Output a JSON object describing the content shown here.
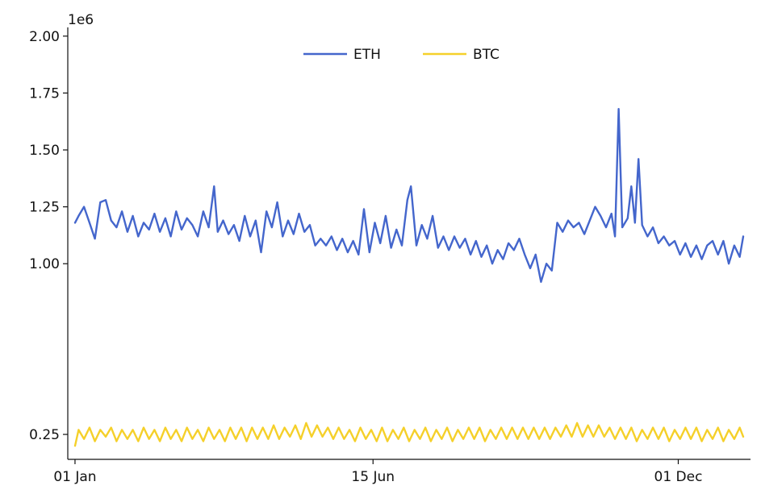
{
  "chart_data": {
    "type": "line",
    "title": "",
    "xlabel": "",
    "ylabel": "",
    "y_offset_label": "1e6",
    "y_ticks": [
      0.25,
      1.0,
      1.25,
      1.5,
      1.75,
      2.0
    ],
    "y_tick_labels": [
      "0.25",
      "1.00",
      "1.25",
      "1.50",
      "1.75",
      "2.00"
    ],
    "ylim": [
      0.19,
      2.01
    ],
    "x_ticks": [
      "2021-01-01",
      "2021-06-15",
      "2021-12-01"
    ],
    "x_tick_labels": [
      "01 Jan",
      "15 Jun",
      "01 Dec"
    ],
    "xlim": [
      "2020-12-28",
      "2022-01-10"
    ],
    "grid": false,
    "legend_position": "top-center",
    "series": [
      {
        "name": "ETH",
        "color": "#4466cc",
        "points": [
          [
            "2021-01-01",
            1.18
          ],
          [
            "2021-01-03",
            1.21
          ],
          [
            "2021-01-06",
            1.25
          ],
          [
            "2021-01-09",
            1.18
          ],
          [
            "2021-01-12",
            1.11
          ],
          [
            "2021-01-15",
            1.27
          ],
          [
            "2021-01-18",
            1.28
          ],
          [
            "2021-01-21",
            1.19
          ],
          [
            "2021-01-24",
            1.16
          ],
          [
            "2021-01-27",
            1.23
          ],
          [
            "2021-01-30",
            1.14
          ],
          [
            "2021-02-02",
            1.21
          ],
          [
            "2021-02-05",
            1.12
          ],
          [
            "2021-02-08",
            1.18
          ],
          [
            "2021-02-11",
            1.15
          ],
          [
            "2021-02-14",
            1.22
          ],
          [
            "2021-02-17",
            1.14
          ],
          [
            "2021-02-20",
            1.2
          ],
          [
            "2021-02-23",
            1.12
          ],
          [
            "2021-02-26",
            1.23
          ],
          [
            "2021-03-01",
            1.15
          ],
          [
            "2021-03-04",
            1.2
          ],
          [
            "2021-03-07",
            1.17
          ],
          [
            "2021-03-10",
            1.12
          ],
          [
            "2021-03-13",
            1.23
          ],
          [
            "2021-03-16",
            1.16
          ],
          [
            "2021-03-19",
            1.34
          ],
          [
            "2021-03-21",
            1.14
          ],
          [
            "2021-03-24",
            1.19
          ],
          [
            "2021-03-27",
            1.13
          ],
          [
            "2021-03-30",
            1.17
          ],
          [
            "2021-04-02",
            1.1
          ],
          [
            "2021-04-05",
            1.21
          ],
          [
            "2021-04-08",
            1.12
          ],
          [
            "2021-04-11",
            1.19
          ],
          [
            "2021-04-14",
            1.05
          ],
          [
            "2021-04-17",
            1.23
          ],
          [
            "2021-04-20",
            1.16
          ],
          [
            "2021-04-23",
            1.27
          ],
          [
            "2021-04-26",
            1.12
          ],
          [
            "2021-04-29",
            1.19
          ],
          [
            "2021-05-02",
            1.13
          ],
          [
            "2021-05-05",
            1.22
          ],
          [
            "2021-05-08",
            1.14
          ],
          [
            "2021-05-11",
            1.17
          ],
          [
            "2021-05-14",
            1.08
          ],
          [
            "2021-05-17",
            1.11
          ],
          [
            "2021-05-20",
            1.08
          ],
          [
            "2021-05-23",
            1.12
          ],
          [
            "2021-05-26",
            1.06
          ],
          [
            "2021-05-29",
            1.11
          ],
          [
            "2021-06-01",
            1.05
          ],
          [
            "2021-06-04",
            1.1
          ],
          [
            "2021-06-07",
            1.04
          ],
          [
            "2021-06-10",
            1.24
          ],
          [
            "2021-06-13",
            1.05
          ],
          [
            "2021-06-16",
            1.18
          ],
          [
            "2021-06-19",
            1.09
          ],
          [
            "2021-06-22",
            1.21
          ],
          [
            "2021-06-25",
            1.07
          ],
          [
            "2021-06-28",
            1.15
          ],
          [
            "2021-07-01",
            1.08
          ],
          [
            "2021-07-04",
            1.28
          ],
          [
            "2021-07-06",
            1.34
          ],
          [
            "2021-07-09",
            1.08
          ],
          [
            "2021-07-12",
            1.17
          ],
          [
            "2021-07-15",
            1.11
          ],
          [
            "2021-07-18",
            1.21
          ],
          [
            "2021-07-21",
            1.07
          ],
          [
            "2021-07-24",
            1.12
          ],
          [
            "2021-07-27",
            1.06
          ],
          [
            "2021-07-30",
            1.12
          ],
          [
            "2021-08-02",
            1.07
          ],
          [
            "2021-08-05",
            1.11
          ],
          [
            "2021-08-08",
            1.04
          ],
          [
            "2021-08-11",
            1.1
          ],
          [
            "2021-08-14",
            1.03
          ],
          [
            "2021-08-17",
            1.08
          ],
          [
            "2021-08-20",
            1.0
          ],
          [
            "2021-08-23",
            1.06
          ],
          [
            "2021-08-26",
            1.02
          ],
          [
            "2021-08-29",
            1.09
          ],
          [
            "2021-09-01",
            1.06
          ],
          [
            "2021-09-04",
            1.11
          ],
          [
            "2021-09-07",
            1.04
          ],
          [
            "2021-09-10",
            0.98
          ],
          [
            "2021-09-13",
            1.04
          ],
          [
            "2021-09-16",
            0.92
          ],
          [
            "2021-09-19",
            1.0
          ],
          [
            "2021-09-22",
            0.97
          ],
          [
            "2021-09-25",
            1.18
          ],
          [
            "2021-09-28",
            1.14
          ],
          [
            "2021-10-01",
            1.19
          ],
          [
            "2021-10-04",
            1.16
          ],
          [
            "2021-10-07",
            1.18
          ],
          [
            "2021-10-10",
            1.13
          ],
          [
            "2021-10-13",
            1.19
          ],
          [
            "2021-10-16",
            1.25
          ],
          [
            "2021-10-19",
            1.21
          ],
          [
            "2021-10-22",
            1.16
          ],
          [
            "2021-10-25",
            1.22
          ],
          [
            "2021-10-27",
            1.12
          ],
          [
            "2021-10-29",
            1.68
          ],
          [
            "2021-10-31",
            1.16
          ],
          [
            "2021-11-03",
            1.2
          ],
          [
            "2021-11-05",
            1.34
          ],
          [
            "2021-11-07",
            1.18
          ],
          [
            "2021-11-09",
            1.46
          ],
          [
            "2021-11-11",
            1.17
          ],
          [
            "2021-11-14",
            1.12
          ],
          [
            "2021-11-17",
            1.16
          ],
          [
            "2021-11-20",
            1.09
          ],
          [
            "2021-11-23",
            1.12
          ],
          [
            "2021-11-26",
            1.08
          ],
          [
            "2021-11-29",
            1.1
          ],
          [
            "2021-12-02",
            1.04
          ],
          [
            "2021-12-05",
            1.09
          ],
          [
            "2021-12-08",
            1.03
          ],
          [
            "2021-12-11",
            1.08
          ],
          [
            "2021-12-14",
            1.02
          ],
          [
            "2021-12-17",
            1.08
          ],
          [
            "2021-12-20",
            1.1
          ],
          [
            "2021-12-23",
            1.04
          ],
          [
            "2021-12-26",
            1.1
          ],
          [
            "2021-12-29",
            1.0
          ],
          [
            "2022-01-01",
            1.08
          ],
          [
            "2022-01-04",
            1.03
          ],
          [
            "2022-01-06",
            1.12
          ]
        ]
      },
      {
        "name": "BTC",
        "color": "#f5d02a",
        "points": [
          [
            "2021-01-01",
            0.2
          ],
          [
            "2021-01-03",
            0.27
          ],
          [
            "2021-01-06",
            0.23
          ],
          [
            "2021-01-09",
            0.28
          ],
          [
            "2021-01-12",
            0.22
          ],
          [
            "2021-01-15",
            0.27
          ],
          [
            "2021-01-18",
            0.24
          ],
          [
            "2021-01-21",
            0.28
          ],
          [
            "2021-01-24",
            0.22
          ],
          [
            "2021-01-27",
            0.27
          ],
          [
            "2021-01-30",
            0.23
          ],
          [
            "2021-02-02",
            0.27
          ],
          [
            "2021-02-05",
            0.22
          ],
          [
            "2021-02-08",
            0.28
          ],
          [
            "2021-02-11",
            0.23
          ],
          [
            "2021-02-14",
            0.27
          ],
          [
            "2021-02-17",
            0.22
          ],
          [
            "2021-02-20",
            0.28
          ],
          [
            "2021-02-23",
            0.23
          ],
          [
            "2021-02-26",
            0.27
          ],
          [
            "2021-03-01",
            0.22
          ],
          [
            "2021-03-04",
            0.28
          ],
          [
            "2021-03-07",
            0.23
          ],
          [
            "2021-03-10",
            0.27
          ],
          [
            "2021-03-13",
            0.22
          ],
          [
            "2021-03-16",
            0.28
          ],
          [
            "2021-03-19",
            0.23
          ],
          [
            "2021-03-22",
            0.27
          ],
          [
            "2021-03-25",
            0.22
          ],
          [
            "2021-03-28",
            0.28
          ],
          [
            "2021-03-31",
            0.23
          ],
          [
            "2021-04-03",
            0.28
          ],
          [
            "2021-04-06",
            0.22
          ],
          [
            "2021-04-09",
            0.28
          ],
          [
            "2021-04-12",
            0.23
          ],
          [
            "2021-04-15",
            0.28
          ],
          [
            "2021-04-18",
            0.23
          ],
          [
            "2021-04-21",
            0.29
          ],
          [
            "2021-04-24",
            0.23
          ],
          [
            "2021-04-27",
            0.28
          ],
          [
            "2021-04-30",
            0.24
          ],
          [
            "2021-05-03",
            0.29
          ],
          [
            "2021-05-06",
            0.23
          ],
          [
            "2021-05-09",
            0.3
          ],
          [
            "2021-05-12",
            0.24
          ],
          [
            "2021-05-15",
            0.29
          ],
          [
            "2021-05-18",
            0.24
          ],
          [
            "2021-05-21",
            0.28
          ],
          [
            "2021-05-24",
            0.23
          ],
          [
            "2021-05-27",
            0.28
          ],
          [
            "2021-05-30",
            0.23
          ],
          [
            "2021-06-02",
            0.27
          ],
          [
            "2021-06-05",
            0.22
          ],
          [
            "2021-06-08",
            0.28
          ],
          [
            "2021-06-11",
            0.23
          ],
          [
            "2021-06-14",
            0.27
          ],
          [
            "2021-06-17",
            0.22
          ],
          [
            "2021-06-20",
            0.28
          ],
          [
            "2021-06-23",
            0.22
          ],
          [
            "2021-06-26",
            0.27
          ],
          [
            "2021-06-29",
            0.23
          ],
          [
            "2021-07-02",
            0.28
          ],
          [
            "2021-07-05",
            0.22
          ],
          [
            "2021-07-08",
            0.27
          ],
          [
            "2021-07-11",
            0.23
          ],
          [
            "2021-07-14",
            0.28
          ],
          [
            "2021-07-17",
            0.22
          ],
          [
            "2021-07-20",
            0.27
          ],
          [
            "2021-07-23",
            0.23
          ],
          [
            "2021-07-26",
            0.28
          ],
          [
            "2021-07-29",
            0.22
          ],
          [
            "2021-08-01",
            0.27
          ],
          [
            "2021-08-04",
            0.23
          ],
          [
            "2021-08-07",
            0.28
          ],
          [
            "2021-08-10",
            0.23
          ],
          [
            "2021-08-13",
            0.28
          ],
          [
            "2021-08-16",
            0.22
          ],
          [
            "2021-08-19",
            0.27
          ],
          [
            "2021-08-22",
            0.23
          ],
          [
            "2021-08-25",
            0.28
          ],
          [
            "2021-08-28",
            0.23
          ],
          [
            "2021-08-31",
            0.28
          ],
          [
            "2021-09-03",
            0.23
          ],
          [
            "2021-09-06",
            0.28
          ],
          [
            "2021-09-09",
            0.23
          ],
          [
            "2021-09-12",
            0.28
          ],
          [
            "2021-09-15",
            0.23
          ],
          [
            "2021-09-18",
            0.28
          ],
          [
            "2021-09-21",
            0.23
          ],
          [
            "2021-09-24",
            0.28
          ],
          [
            "2021-09-27",
            0.24
          ],
          [
            "2021-09-30",
            0.29
          ],
          [
            "2021-10-03",
            0.24
          ],
          [
            "2021-10-06",
            0.3
          ],
          [
            "2021-10-09",
            0.24
          ],
          [
            "2021-10-12",
            0.29
          ],
          [
            "2021-10-15",
            0.24
          ],
          [
            "2021-10-18",
            0.29
          ],
          [
            "2021-10-21",
            0.24
          ],
          [
            "2021-10-24",
            0.28
          ],
          [
            "2021-10-27",
            0.23
          ],
          [
            "2021-10-30",
            0.28
          ],
          [
            "2021-11-02",
            0.23
          ],
          [
            "2021-11-05",
            0.28
          ],
          [
            "2021-11-08",
            0.22
          ],
          [
            "2021-11-11",
            0.27
          ],
          [
            "2021-11-14",
            0.23
          ],
          [
            "2021-11-17",
            0.28
          ],
          [
            "2021-11-20",
            0.23
          ],
          [
            "2021-11-23",
            0.28
          ],
          [
            "2021-11-26",
            0.22
          ],
          [
            "2021-11-29",
            0.27
          ],
          [
            "2021-12-02",
            0.23
          ],
          [
            "2021-12-05",
            0.28
          ],
          [
            "2021-12-08",
            0.23
          ],
          [
            "2021-12-11",
            0.28
          ],
          [
            "2021-12-14",
            0.22
          ],
          [
            "2021-12-17",
            0.27
          ],
          [
            "2021-12-20",
            0.23
          ],
          [
            "2021-12-23",
            0.28
          ],
          [
            "2021-12-26",
            0.22
          ],
          [
            "2021-12-29",
            0.27
          ],
          [
            "2022-01-01",
            0.23
          ],
          [
            "2022-01-04",
            0.28
          ],
          [
            "2022-01-06",
            0.24
          ]
        ]
      }
    ]
  }
}
